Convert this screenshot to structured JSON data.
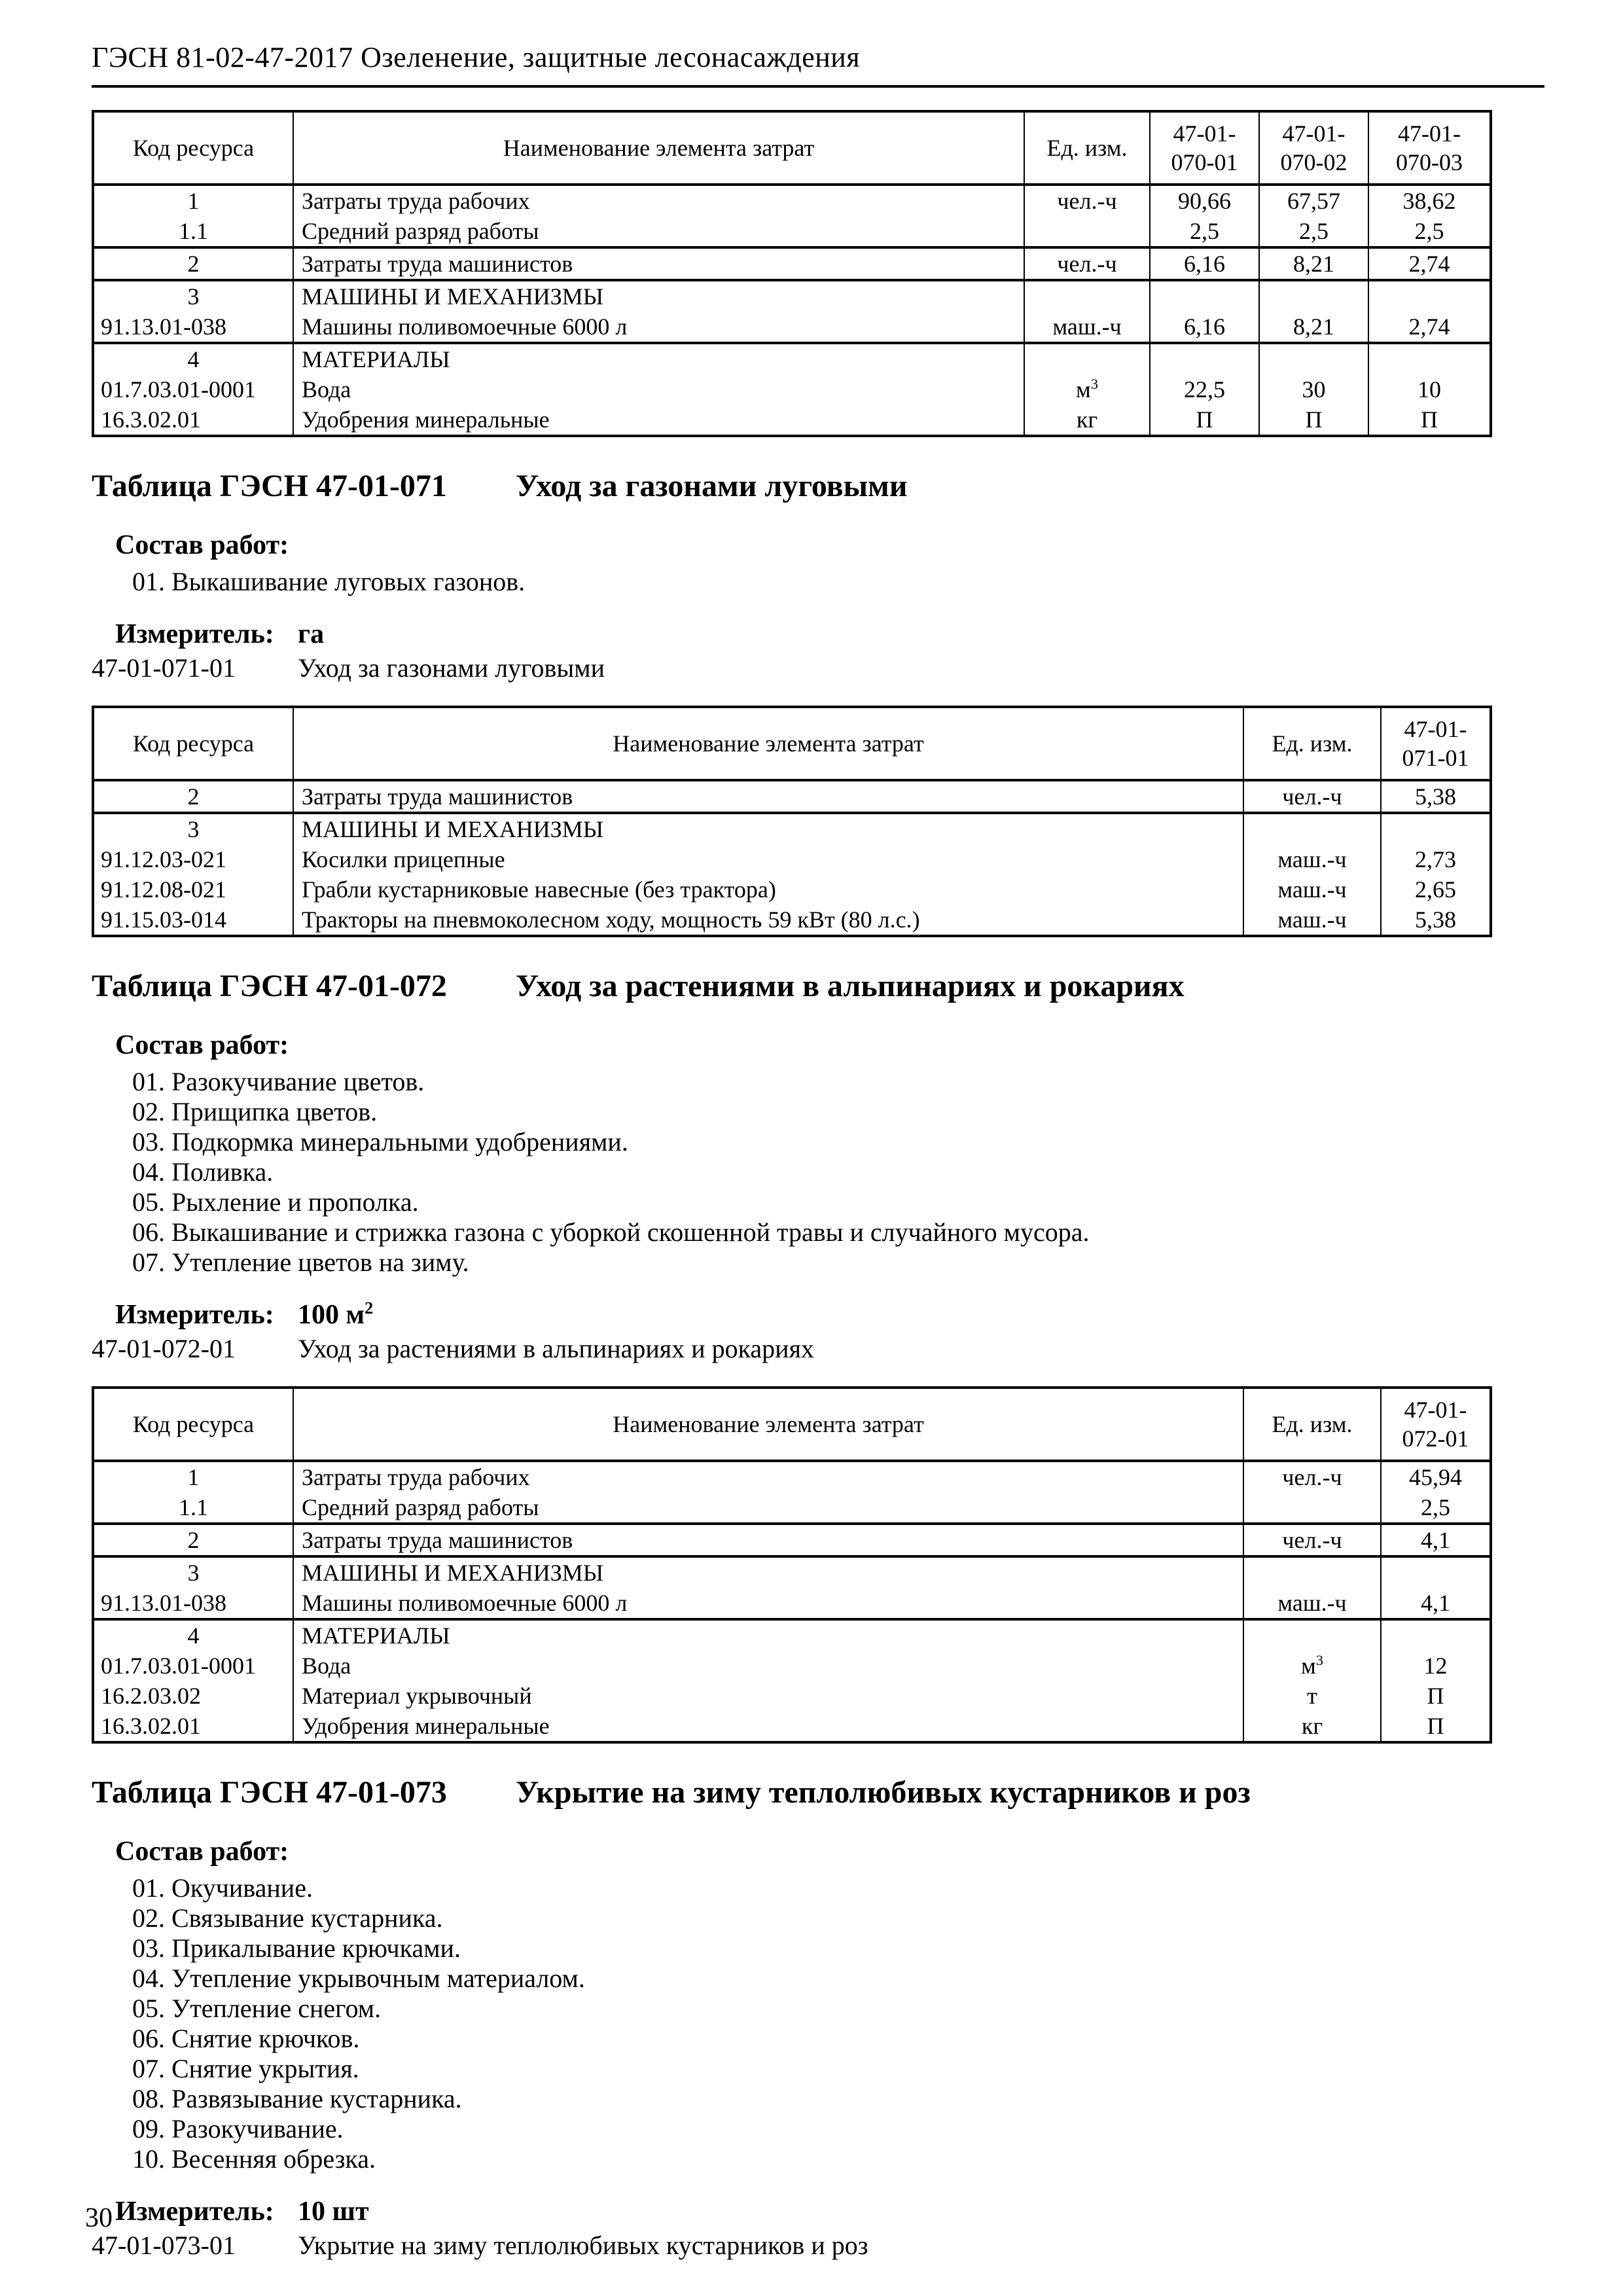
{
  "doc_header": "ГЭСН 81-02-47-2017 Озеленение, защитные лесонасаждения",
  "page_number": "30",
  "labels": {
    "sostav": "Состав работ:",
    "izmeritel": "Измеритель:"
  },
  "table_columns": {
    "code": "Код ресурса",
    "name": "Наименование элемента затрат",
    "unit": "Ед. изм."
  },
  "tables": [
    {
      "values_header": [
        "47-01-\n070-01",
        "47-01-\n070-02",
        "47-01-\n070-03"
      ],
      "groups": [
        {
          "rows": [
            {
              "code": "1",
              "name": "Затраты труда рабочих",
              "unit": "чел.-ч",
              "values": [
                "90,66",
                "67,57",
                "38,62"
              ]
            },
            {
              "code": "1.1",
              "name": "Средний разряд работы",
              "unit": "",
              "values": [
                "2,5",
                "2,5",
                "2,5"
              ]
            }
          ]
        },
        {
          "rows": [
            {
              "code": "2",
              "code_bold": true,
              "name": "Затраты труда машинистов",
              "unit": "чел.-ч",
              "values": [
                "6,16",
                "8,21",
                "2,74"
              ]
            }
          ]
        },
        {
          "rows": [
            {
              "code": "3",
              "code_bold": true,
              "name": "МАШИНЫ И МЕХАНИЗМЫ",
              "name_bold": true,
              "unit": "",
              "values": [
                "",
                "",
                ""
              ]
            },
            {
              "code": "91.13.01-038",
              "name": "Машины поливомоечные 6000 л",
              "unit": "маш.-ч",
              "values": [
                "6,16",
                "8,21",
                "2,74"
              ]
            }
          ]
        },
        {
          "rows": [
            {
              "code": "4",
              "code_bold": true,
              "name": "МАТЕРИАЛЫ",
              "name_bold": true,
              "unit": "",
              "values": [
                "",
                "",
                ""
              ]
            },
            {
              "code": "01.7.03.01-0001",
              "name": "Вода",
              "unit": "м³",
              "values": [
                "22,5",
                "30",
                "10"
              ]
            },
            {
              "code": "16.3.02.01",
              "name": "Удобрения минеральные",
              "unit": "кг",
              "values": [
                "П",
                "П",
                "П"
              ]
            }
          ]
        }
      ]
    },
    {
      "values_header": [
        "47-01-\n071-01"
      ],
      "groups": [
        {
          "rows": [
            {
              "code": "2",
              "code_bold": true,
              "name": "Затраты труда машинистов",
              "unit": "чел.-ч",
              "values": [
                "5,38"
              ]
            }
          ]
        },
        {
          "rows": [
            {
              "code": "3",
              "code_bold": true,
              "name": "МАШИНЫ И МЕХАНИЗМЫ",
              "name_bold": true,
              "unit": "",
              "values": [
                ""
              ]
            },
            {
              "code": "91.12.03-021",
              "name": "Косилки прицепные",
              "unit": "маш.-ч",
              "values": [
                "2,73"
              ]
            },
            {
              "code": "91.12.08-021",
              "name": "Грабли кустарниковые навесные (без трактора)",
              "unit": "маш.-ч",
              "values": [
                "2,65"
              ]
            },
            {
              "code": "91.15.03-014",
              "name": "Тракторы на пневмоколесном ходу, мощность 59 кВт (80 л.с.)",
              "unit": "маш.-ч",
              "values": [
                "5,38"
              ]
            }
          ]
        }
      ]
    },
    {
      "values_header": [
        "47-01-\n072-01"
      ],
      "groups": [
        {
          "rows": [
            {
              "code": "1",
              "name": "Затраты труда рабочих",
              "unit": "чел.-ч",
              "values": [
                "45,94"
              ]
            },
            {
              "code": "1.1",
              "name": "Средний разряд работы",
              "unit": "",
              "values": [
                "2,5"
              ]
            }
          ]
        },
        {
          "rows": [
            {
              "code": "2",
              "code_bold": true,
              "name": "Затраты труда машинистов",
              "unit": "чел.-ч",
              "values": [
                "4,1"
              ]
            }
          ]
        },
        {
          "rows": [
            {
              "code": "3",
              "code_bold": true,
              "name": "МАШИНЫ И МЕХАНИЗМЫ",
              "name_bold": true,
              "unit": "",
              "values": [
                ""
              ]
            },
            {
              "code": "91.13.01-038",
              "name": "Машины поливомоечные 6000 л",
              "unit": "маш.-ч",
              "values": [
                "4,1"
              ]
            }
          ]
        },
        {
          "rows": [
            {
              "code": "4",
              "code_bold": true,
              "name": "МАТЕРИАЛЫ",
              "name_bold": true,
              "unit": "",
              "values": [
                ""
              ]
            },
            {
              "code": "01.7.03.01-0001",
              "name": "Вода",
              "unit": "м³",
              "values": [
                "12"
              ]
            },
            {
              "code": "16.2.03.02",
              "name": "Материал укрывочный",
              "unit": "т",
              "values": [
                "П"
              ]
            },
            {
              "code": "16.3.02.01",
              "name": "Удобрения минеральные",
              "unit": "кг",
              "values": [
                "П"
              ]
            }
          ]
        }
      ]
    }
  ],
  "sections": [
    {
      "heading_num": "Таблица ГЭСН 47-01-071",
      "heading_title": "Уход за газонами луговыми",
      "works": [
        "01. Выкашивание луговых газонов."
      ],
      "measurer": "га",
      "variants": [
        {
          "code": "47-01-071-01",
          "name": "Уход за газонами луговыми"
        }
      ]
    },
    {
      "heading_num": "Таблица ГЭСН 47-01-072",
      "heading_title": "Уход за растениями в альпинариях и рокариях",
      "works": [
        "01. Разокучивание цветов.",
        "02. Прищипка цветов.",
        "03. Подкормка минеральными удобрениями.",
        "04. Поливка.",
        "05. Рыхление и прополка.",
        "06. Выкашивание и стрижка газона с уборкой скошенной травы и случайного мусора.",
        "07. Утепление цветов на зиму."
      ],
      "measurer": "100 м²",
      "variants": [
        {
          "code": "47-01-072-01",
          "name": "Уход за растениями в альпинариях и рокариях"
        }
      ]
    },
    {
      "heading_num": "Таблица ГЭСН 47-01-073",
      "heading_title": "Укрытие на зиму теплолюбивых кустарников и роз",
      "works": [
        "01. Окучивание.",
        "02. Связывание кустарника.",
        "03. Прикалывание крючками.",
        "04. Утепление укрывочным материалом.",
        "05. Утепление снегом.",
        "06. Снятие крючков.",
        "07. Снятие укрытия.",
        "08. Развязывание кустарника.",
        "09. Разокучивание.",
        "10. Весенняя обрезка."
      ],
      "measurer": "10 шт",
      "variants": [
        {
          "code": "47-01-073-01",
          "name": "Укрытие на зиму теплолюбивых кустарников и роз"
        }
      ]
    }
  ]
}
